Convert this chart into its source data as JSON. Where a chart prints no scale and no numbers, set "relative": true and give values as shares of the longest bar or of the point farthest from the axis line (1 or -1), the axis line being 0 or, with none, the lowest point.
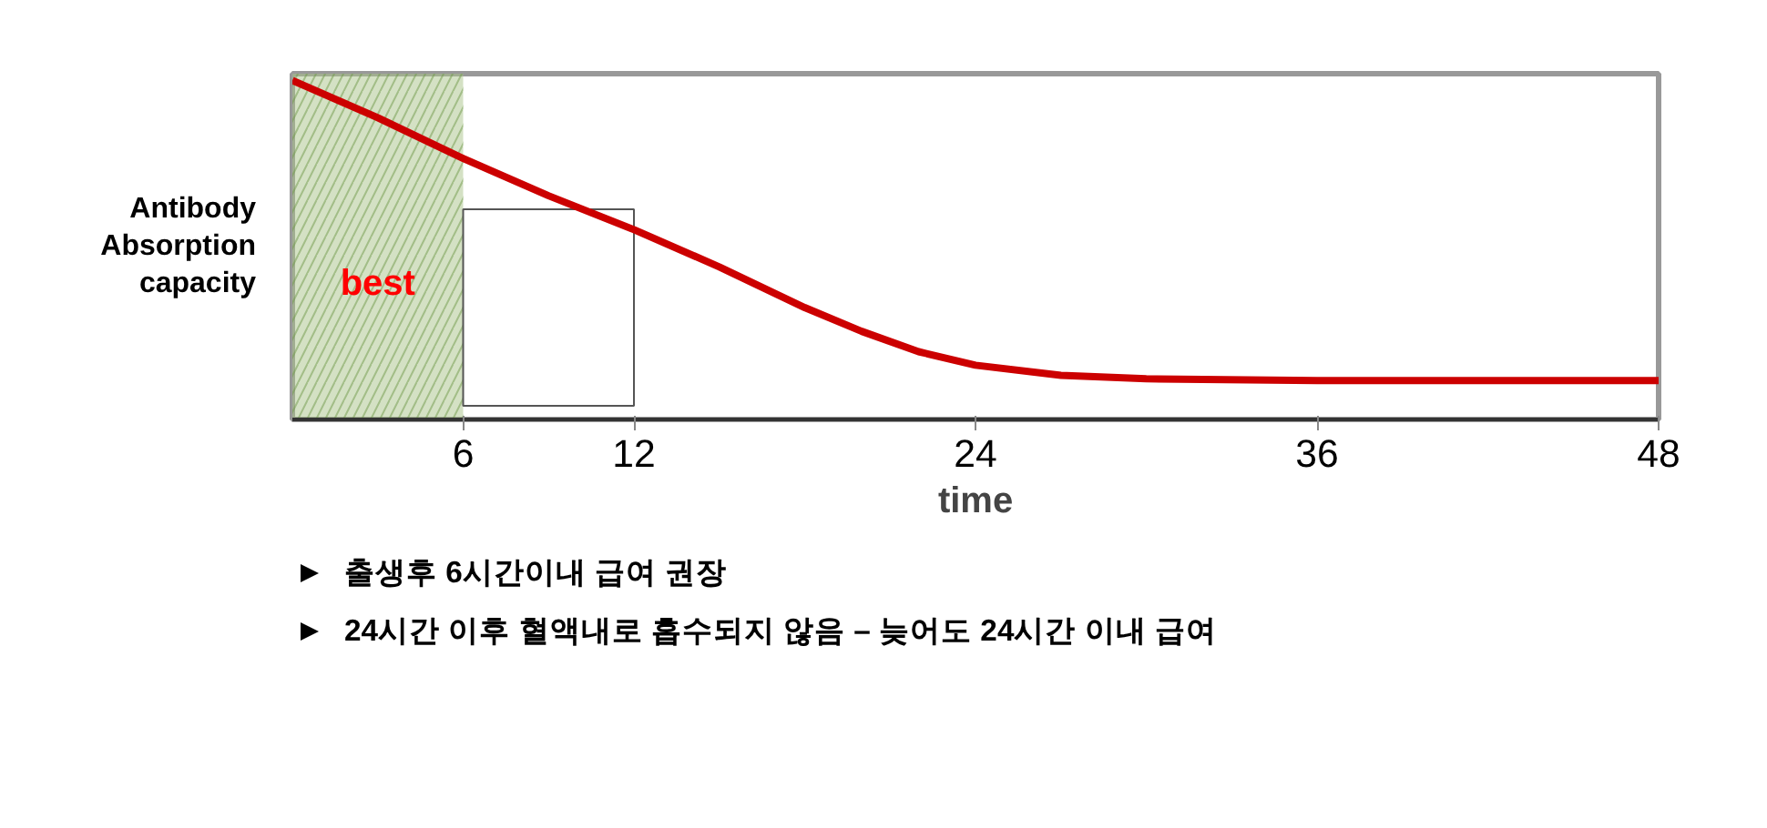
{
  "chart_data": {
    "type": "line",
    "xlabel": "time",
    "ylabel": "Antibody Absorption capacity",
    "relative": true,
    "x": [
      0,
      3,
      6,
      9,
      12,
      15,
      18,
      20,
      22,
      24,
      27,
      30,
      36,
      42,
      48
    ],
    "series": [
      {
        "color": "#cc0000",
        "values": [
          1,
          0.89,
          0.77,
          0.66,
          0.56,
          0.45,
          0.33,
          0.26,
          0.2,
          0.16,
          0.13,
          0.12,
          0.115,
          0.115,
          0.115
        ]
      }
    ],
    "xlim": [
      0,
      48
    ],
    "xticks": [
      6,
      12,
      24,
      36,
      48
    ],
    "grid": false,
    "marker": "none",
    "line_style": "solid",
    "bands": [
      {
        "axis": "x",
        "from": 0,
        "to": 6,
        "label": "best",
        "color": "#a9c48a"
      },
      {
        "axis": "x",
        "from": 6,
        "to": 12,
        "color": "#ffffff"
      }
    ],
    "annotations": [
      "출생후 6시간이내 급여 권장",
      "24시간 이후 혈액내로 흡수되지 않음 – 늦어도 24시간 이내 급여"
    ]
  }
}
